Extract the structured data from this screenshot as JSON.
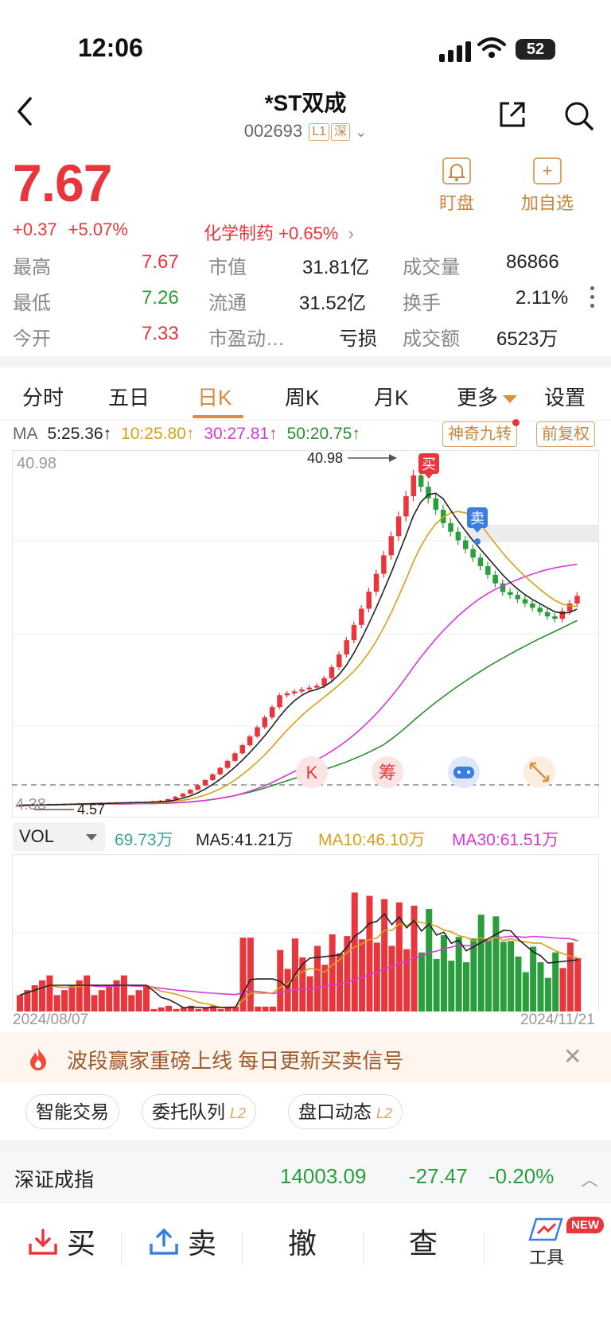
{
  "status_bar": {
    "time": "12:06",
    "battery": "52"
  },
  "header": {
    "title": "*ST双成",
    "code": "002693",
    "tag_level": "L1",
    "tag_market": "深"
  },
  "quote": {
    "price": "7.67",
    "change": "+0.37",
    "change_pct": "+5.07%",
    "sector_name": "化学制药",
    "sector_pct": "+0.65%",
    "watch_label": "盯盘",
    "fav_label": "加自选"
  },
  "stats": [
    [
      {
        "label": "最高",
        "value": "7.67",
        "color": "#e8363c"
      },
      {
        "label": "市值",
        "value": "31.81亿",
        "color": "#222222"
      },
      {
        "label": "成交量",
        "value": "86866",
        "color": "#222222"
      }
    ],
    [
      {
        "label": "最低",
        "value": "7.26",
        "color": "#2a9d3c"
      },
      {
        "label": "流通",
        "value": "31.52亿",
        "color": "#222222"
      },
      {
        "label": "换手",
        "value": "2.11%",
        "color": "#222222"
      }
    ],
    [
      {
        "label": "今开",
        "value": "7.33",
        "color": "#e8363c"
      },
      {
        "label": "市盈动…",
        "value": "亏损",
        "color": "#222222"
      },
      {
        "label": "成交额",
        "value": "6523万",
        "color": "#222222"
      }
    ]
  ],
  "tabs": [
    "分时",
    "五日",
    "日K",
    "周K",
    "月K",
    "更多",
    "设置"
  ],
  "ma": {
    "label": "MA",
    "ma5": "5:25.36↑",
    "ma10": "10:25.80↑",
    "ma30": "30:27.81↑",
    "ma50": "50:20.75↑"
  },
  "chart_buttons": {
    "nine": "神奇九转",
    "adjust": "前复权"
  },
  "chart_data": {
    "type": "candlestick",
    "y_max_label": "40.98",
    "y_min_label": "4.38",
    "high_annotation": "40.98",
    "low_annotation": "4.57",
    "buy_marker": "买",
    "sell_marker": "卖",
    "overlay_icons": [
      "K",
      "筹"
    ],
    "volume": {
      "selector": "VOL",
      "vol": "69.73万",
      "ma5": "MA5:41.21万",
      "ma10": "MA10:46.10万",
      "ma30": "MA30:61.51万"
    },
    "date_start": "2024/08/07",
    "date_end": "2024/11/21"
  },
  "banner": {
    "text": "波段赢家重磅上线 每日更新买卖信号"
  },
  "chips": [
    {
      "label": "智能交易",
      "l2": ""
    },
    {
      "label": "委托队列",
      "l2": "L2"
    },
    {
      "label": "盘口动态",
      "l2": "L2"
    }
  ],
  "index": {
    "name": "深证成指",
    "value": "14003.09",
    "change": "-27.47",
    "pct": "-0.20%"
  },
  "bottom": {
    "buy": "买",
    "sell": "卖",
    "cancel": "撤",
    "query": "查",
    "tools": "工具",
    "new": "NEW"
  },
  "colors": {
    "up": "#e8363c",
    "down": "#2a9d3c",
    "accent": "#d9903f",
    "ma5": "#222222",
    "ma10": "#d8a018",
    "ma30": "#d63ad6",
    "ma50": "#2f8f2f"
  }
}
